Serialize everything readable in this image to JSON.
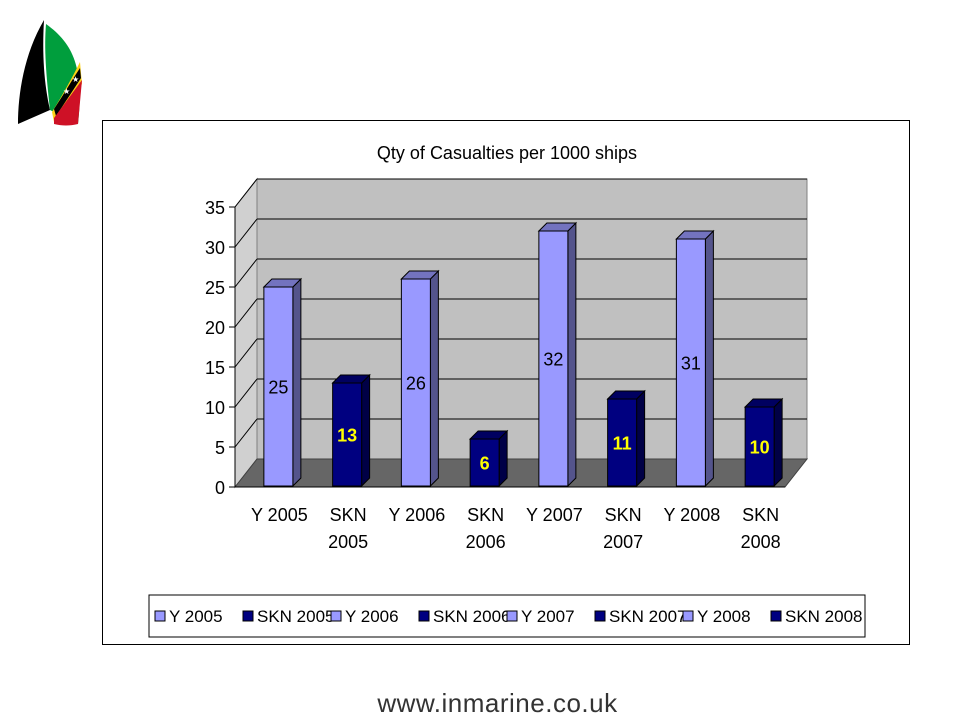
{
  "chart_data": {
    "type": "bar",
    "title": "Qty of Casualties per 1000 ships",
    "categories": [
      "Y 2005",
      "SKN 2005",
      "Y 2006",
      "SKN 2006",
      "Y 2007",
      "SKN 2007",
      "Y 2008",
      "SKN 2008"
    ],
    "category_lines": [
      [
        "Y 2005"
      ],
      [
        "SKN",
        "2005"
      ],
      [
        "Y 2006"
      ],
      [
        "SKN",
        "2006"
      ],
      [
        "Y 2007"
      ],
      [
        "SKN",
        "2007"
      ],
      [
        "Y 2008"
      ],
      [
        "SKN",
        "2008"
      ]
    ],
    "values": [
      25,
      13,
      26,
      6,
      32,
      11,
      31,
      10
    ],
    "series_type": [
      "Y",
      "SKN",
      "Y",
      "SKN",
      "Y",
      "SKN",
      "Y",
      "SKN"
    ],
    "ylim": [
      0,
      35
    ],
    "yticks": [
      0,
      5,
      10,
      15,
      20,
      25,
      30,
      35
    ],
    "grid": true,
    "legend_position": "bottom",
    "legend": [
      "Y 2005",
      "SKN 2005",
      "Y 2006",
      "SKN 2006",
      "Y 2007",
      "SKN 2007",
      "Y 2008",
      "SKN 2008"
    ],
    "colors": {
      "Y": "#9999ff",
      "SKN": "#000080",
      "Y_label": "#000000",
      "SKN_label": "#ffff00",
      "wall": "#c0c0c0",
      "floor": "#666666"
    }
  },
  "footer": {
    "url": "www.inmarine.co.uk"
  }
}
